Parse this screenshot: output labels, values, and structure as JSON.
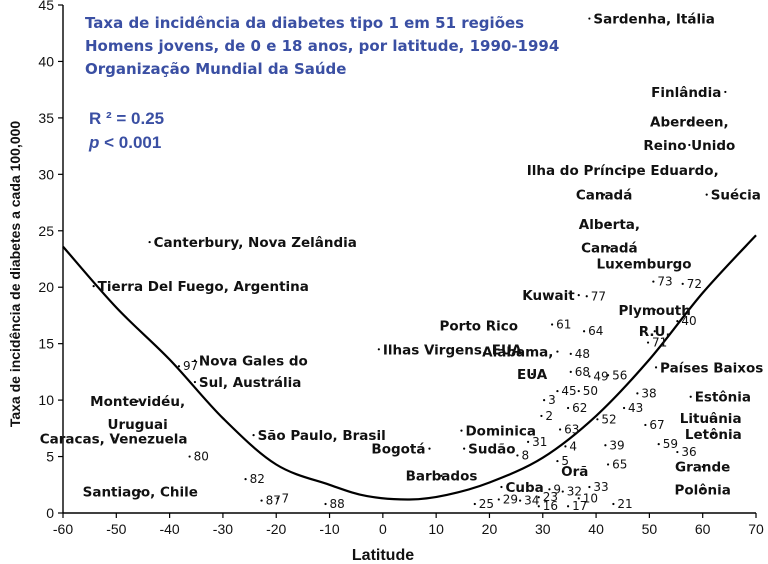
{
  "chart_data": {
    "type": "scatter",
    "title_lines": [
      "Taxa de incidência da diabetes tipo 1 em 51 regiões",
      "Homens jovens, de 0 e 18 anos, por latitude, 1990-1994",
      "Organização Mundial da Saúde"
    ],
    "r2_label": "R ² = 0.25",
    "p_label_italic": "p",
    "p_label_rest": " < 0.001",
    "xlabel": "Latitude",
    "ylabel": "Taxa de incidência de diabetes a cada 100,000",
    "xlim": [
      -60,
      70
    ],
    "ylim": [
      0,
      45
    ],
    "xticks": [
      "-60",
      "-50",
      "-40",
      "-30",
      "-20",
      "-10",
      "0",
      "10",
      "20",
      "30",
      "40",
      "50",
      "60",
      "70"
    ],
    "yticks": [
      "0",
      "5",
      "10",
      "15",
      "20",
      "25",
      "30",
      "35",
      "40",
      "45"
    ],
    "trend_curve": [
      {
        "x": -60,
        "y": 23.6
      },
      {
        "x": -50,
        "y": 18.2
      },
      {
        "x": -40,
        "y": 13.6
      },
      {
        "x": -30,
        "y": 8.4
      },
      {
        "x": -20,
        "y": 4.3
      },
      {
        "x": -10,
        "y": 2.5
      },
      {
        "x": -3,
        "y": 1.5
      },
      {
        "x": 5,
        "y": 1.2
      },
      {
        "x": 12,
        "y": 1.6
      },
      {
        "x": 20,
        "y": 2.7
      },
      {
        "x": 30,
        "y": 4.9
      },
      {
        "x": 40,
        "y": 8.6
      },
      {
        "x": 50,
        "y": 13.6
      },
      {
        "x": 60,
        "y": 19.5
      },
      {
        "x": 70,
        "y": 24.6
      }
    ],
    "labeled_points": [
      {
        "label": "Sardenha, Itália",
        "x": 39.5,
        "y": 43.8,
        "anchor": "start"
      },
      {
        "label": "Finlândia",
        "x": 63.5,
        "y": 37.3,
        "anchor": "end"
      },
      {
        "label": "Aberdeen,",
        "x": 57.5,
        "y": 34.7,
        "anchor": "middle"
      },
      {
        "label": "Reino Unido",
        "x": 57.5,
        "y": 32.6,
        "anchor": "middle"
      },
      {
        "label": "Ilha do Príncipe Eduardo,",
        "x": 45,
        "y": 30.4,
        "anchor": "middle"
      },
      {
        "label": "Canadá",
        "x": 41.5,
        "y": 28.2,
        "anchor": "middle"
      },
      {
        "label": "Suécia",
        "x": 61.5,
        "y": 28.2,
        "anchor": "start"
      },
      {
        "label": "Alberta,",
        "x": 42.5,
        "y": 25.6,
        "anchor": "middle"
      },
      {
        "label": "Canadá",
        "x": 42.5,
        "y": 23.5,
        "anchor": "middle"
      },
      {
        "label": "Luxemburgo",
        "x": 49,
        "y": 22.1,
        "anchor": "middle"
      },
      {
        "label": "Canterbury, Nova Zelândia",
        "x": -43,
        "y": 24.0,
        "anchor": "start"
      },
      {
        "label": "Tierra Del Fuego, Argentina",
        "x": -53.5,
        "y": 20.1,
        "anchor": "start"
      },
      {
        "label": "Kuwait",
        "x": 36,
        "y": 19.3,
        "anchor": "end"
      },
      {
        "label": "Plymouth",
        "x": 51,
        "y": 18.0,
        "anchor": "middle"
      },
      {
        "label": "R.U.",
        "x": 51,
        "y": 16.1,
        "anchor": "middle"
      },
      {
        "label": "Porto Rico",
        "x": 18,
        "y": 16.6,
        "anchor": "middle"
      },
      {
        "label": "Ilhas Virgens, EUA",
        "x": 0,
        "y": 14.5,
        "anchor": "start"
      },
      {
        "label": "Alabama,",
        "x": 32,
        "y": 14.3,
        "anchor": "end"
      },
      {
        "label": "EUA",
        "x": 28,
        "y": 12.3,
        "anchor": "middle"
      },
      {
        "label": "Nova Gales do",
        "x": -34.5,
        "y": 13.5,
        "anchor": "start"
      },
      {
        "label": "Sul, Austrália",
        "x": -34.5,
        "y": 11.6,
        "anchor": "start"
      },
      {
        "label": "Países Baixos",
        "x": 52,
        "y": 12.9,
        "anchor": "start"
      },
      {
        "label": "Montevidéu,",
        "x": -46,
        "y": 9.9,
        "anchor": "middle"
      },
      {
        "label": "Uruguai",
        "x": -46,
        "y": 7.9,
        "anchor": "middle"
      },
      {
        "label": "Caracas, Venezuela",
        "x": -50.5,
        "y": 6.6,
        "anchor": "middle"
      },
      {
        "label": "Estônia",
        "x": 58.5,
        "y": 10.3,
        "anchor": "start"
      },
      {
        "label": "São Paulo, Brasil",
        "x": -23.5,
        "y": 6.9,
        "anchor": "start"
      },
      {
        "label": "Dominica",
        "x": 15.5,
        "y": 7.3,
        "anchor": "start"
      },
      {
        "label": "Lituânia",
        "x": 61.5,
        "y": 8.4,
        "anchor": "middle"
      },
      {
        "label": "Letônia",
        "x": 62,
        "y": 7.0,
        "anchor": "middle"
      },
      {
        "label": "Bogotá",
        "x": 8,
        "y": 5.7,
        "anchor": "end"
      },
      {
        "label": "Sudão",
        "x": 16,
        "y": 5.7,
        "anchor": "start"
      },
      {
        "label": "Orã",
        "x": 36,
        "y": 3.7,
        "anchor": "middle"
      },
      {
        "label": "Grande",
        "x": 60,
        "y": 4.1,
        "anchor": "middle"
      },
      {
        "label": "Polônia",
        "x": 60,
        "y": 2.1,
        "anchor": "middle"
      },
      {
        "label": "Barbados",
        "x": 11,
        "y": 3.3,
        "anchor": "middle"
      },
      {
        "label": "Cuba",
        "x": 23,
        "y": 2.3,
        "anchor": "start"
      },
      {
        "label": "Santiago, Chile",
        "x": -45.5,
        "y": 1.9,
        "anchor": "middle"
      }
    ],
    "numbered_points": [
      {
        "label": "97",
        "x": -37.5,
        "y": 13.0
      },
      {
        "label": "80",
        "x": -35.5,
        "y": 5.0
      },
      {
        "label": "82",
        "x": -25,
        "y": 3.0
      },
      {
        "label": "87",
        "x": -22,
        "y": 1.1
      },
      {
        "label": "7",
        "x": -19,
        "y": 1.3
      },
      {
        "label": "88",
        "x": -10,
        "y": 0.8
      },
      {
        "label": "77",
        "x": 39,
        "y": 19.2
      },
      {
        "label": "61",
        "x": 32.5,
        "y": 16.7
      },
      {
        "label": "64",
        "x": 38.5,
        "y": 16.1
      },
      {
        "label": "48",
        "x": 36,
        "y": 14.1
      },
      {
        "label": "68",
        "x": 36,
        "y": 12.5
      },
      {
        "label": "49",
        "x": 39.5,
        "y": 12.1
      },
      {
        "label": "56",
        "x": 43,
        "y": 12.2
      },
      {
        "label": "45",
        "x": 33.5,
        "y": 10.8
      },
      {
        "label": "50",
        "x": 37.5,
        "y": 10.8
      },
      {
        "label": "3",
        "x": 31,
        "y": 10.0
      },
      {
        "label": "62",
        "x": 35.5,
        "y": 9.3
      },
      {
        "label": "2",
        "x": 30.5,
        "y": 8.6
      },
      {
        "label": "63",
        "x": 34,
        "y": 7.4
      },
      {
        "label": "52",
        "x": 41,
        "y": 8.3
      },
      {
        "label": "43",
        "x": 46,
        "y": 9.3
      },
      {
        "label": "38",
        "x": 48.5,
        "y": 10.6
      },
      {
        "label": "67",
        "x": 50,
        "y": 7.8
      },
      {
        "label": "59",
        "x": 52.5,
        "y": 6.1
      },
      {
        "label": "39",
        "x": 42.5,
        "y": 6.0
      },
      {
        "label": "36",
        "x": 56,
        "y": 5.4
      },
      {
        "label": "65",
        "x": 43,
        "y": 4.3
      },
      {
        "label": "31",
        "x": 28,
        "y": 6.3
      },
      {
        "label": "8",
        "x": 26,
        "y": 5.1
      },
      {
        "label": "5",
        "x": 33.5,
        "y": 4.6
      },
      {
        "label": "4",
        "x": 35,
        "y": 5.9
      },
      {
        "label": "73",
        "x": 51.5,
        "y": 20.5
      },
      {
        "label": "72",
        "x": 57,
        "y": 20.3
      },
      {
        "label": "40",
        "x": 56,
        "y": 17.0
      },
      {
        "label": "71",
        "x": 50.5,
        "y": 15.1
      },
      {
        "label": "33",
        "x": 39.5,
        "y": 2.3
      },
      {
        "label": "9",
        "x": 32,
        "y": 2.1
      },
      {
        "label": "32",
        "x": 34.5,
        "y": 1.9
      },
      {
        "label": "10",
        "x": 37.5,
        "y": 1.3
      },
      {
        "label": "29",
        "x": 22.5,
        "y": 1.2
      },
      {
        "label": "34",
        "x": 26.5,
        "y": 1.1
      },
      {
        "label": "23",
        "x": 30,
        "y": 1.4
      },
      {
        "label": "16",
        "x": 30,
        "y": 0.6
      },
      {
        "label": "17",
        "x": 35.5,
        "y": 0.6
      },
      {
        "label": "21",
        "x": 44,
        "y": 0.8
      },
      {
        "label": "25",
        "x": 18,
        "y": 0.8
      }
    ]
  }
}
